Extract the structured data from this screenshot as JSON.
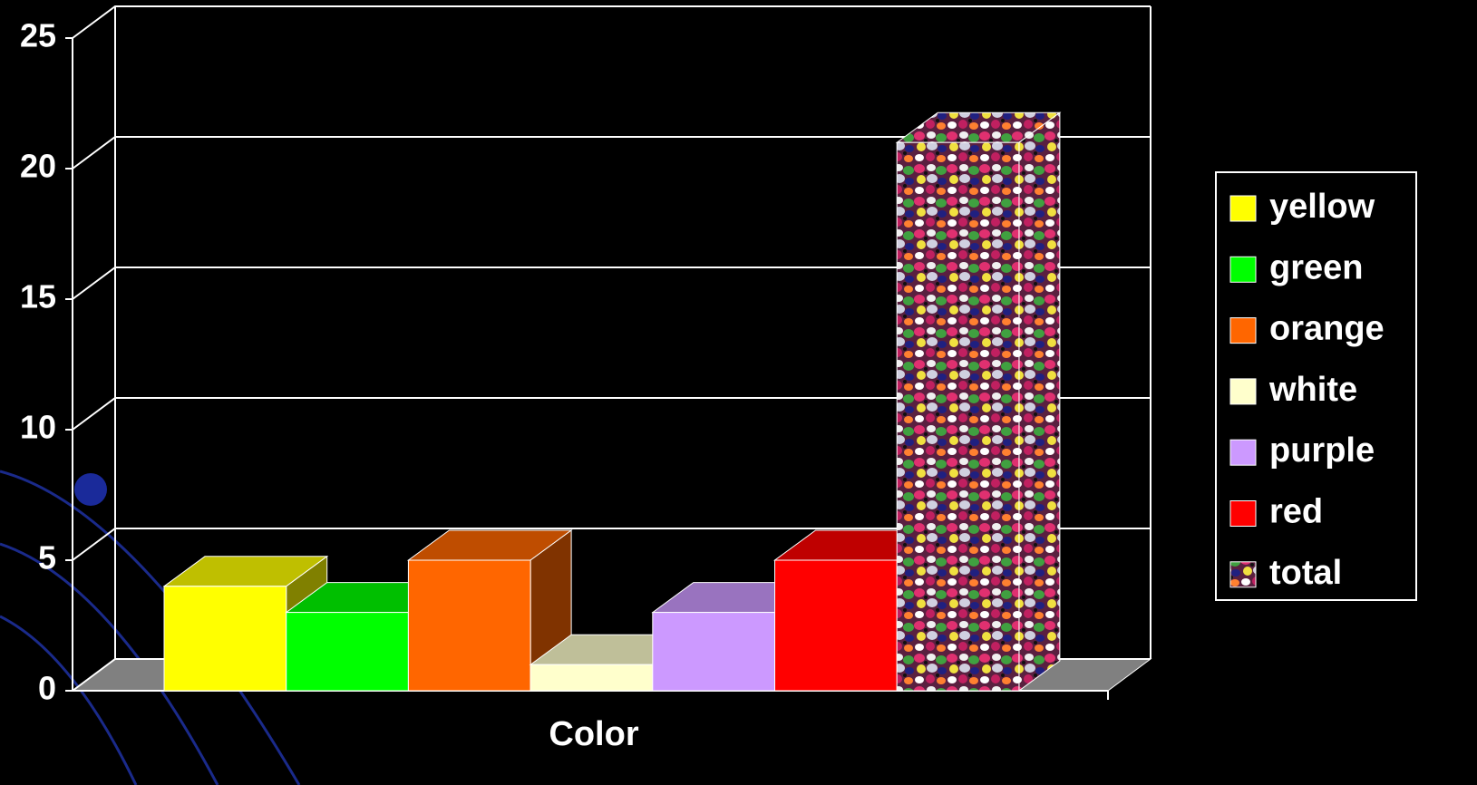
{
  "chart_data": {
    "type": "bar3d",
    "xlabel": "Color",
    "series": [
      {
        "name": "yellow",
        "color": "#ffff00",
        "values": [
          4
        ]
      },
      {
        "name": "green",
        "color": "#00ff00",
        "values": [
          3
        ]
      },
      {
        "name": "orange",
        "color": "#ff6600",
        "values": [
          5
        ]
      },
      {
        "name": "white",
        "color": "#ffffcc",
        "values": [
          1
        ]
      },
      {
        "name": "purple",
        "color": "#cc99ff",
        "values": [
          3
        ]
      },
      {
        "name": "red",
        "color": "#ff0000",
        "values": [
          5
        ]
      },
      {
        "name": "total",
        "values": [
          21
        ]
      }
    ],
    "ylim": [
      0,
      25
    ],
    "yticks": [
      0,
      5,
      10,
      15,
      20,
      25
    ],
    "grid": true,
    "legend": "right"
  }
}
